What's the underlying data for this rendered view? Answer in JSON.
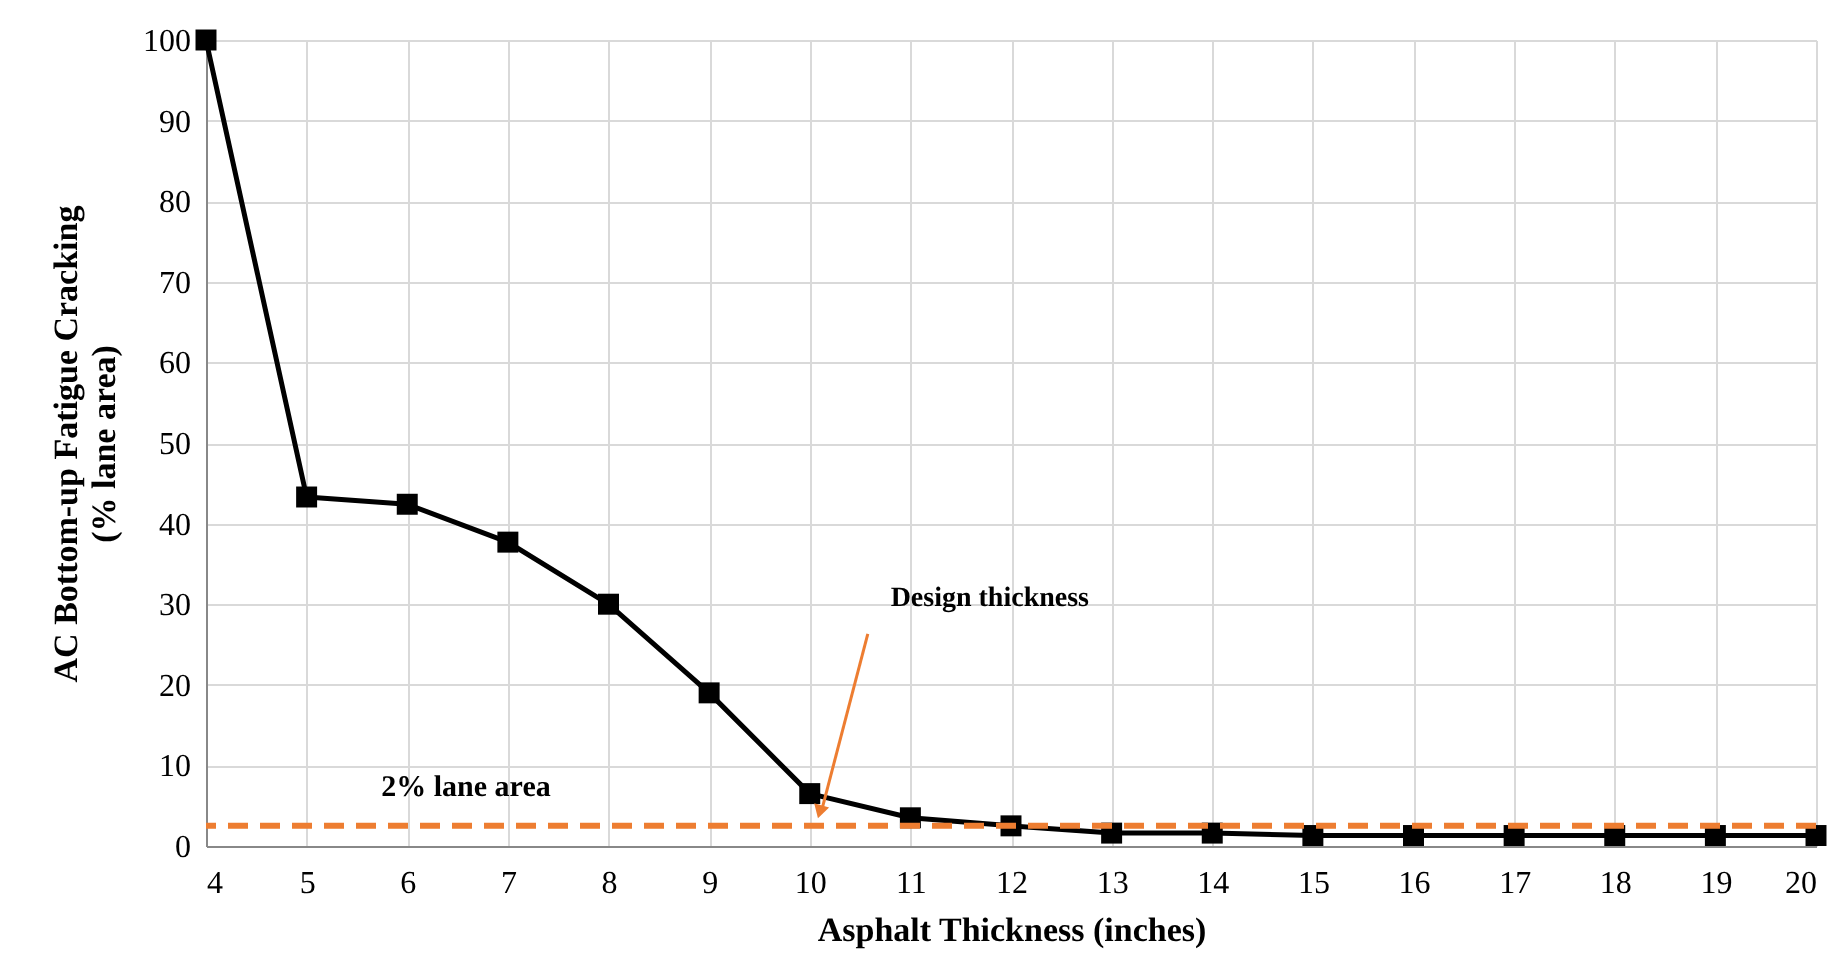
{
  "chart_data": {
    "type": "line",
    "xlabel": "Asphalt Thickness (inches)",
    "ylabel": "AC Bottom-up Fatigue Cracking\n(% lane area)",
    "x": [
      4,
      5,
      6,
      7,
      8,
      9,
      10,
      11,
      12,
      13,
      14,
      15,
      16,
      17,
      18,
      19,
      20
    ],
    "series": [
      {
        "color": "#000000",
        "values": [
          100,
          43.3,
          42.4,
          37.7,
          30,
          19,
          6.5,
          3.5,
          2.5,
          1.6,
          1.6,
          1.3,
          1.3,
          1.3,
          1.3,
          1.3,
          1.3
        ]
      }
    ],
    "xlim": [
      4,
      20
    ],
    "xticks": [
      4,
      5,
      6,
      7,
      8,
      9,
      10,
      11,
      12,
      13,
      14,
      15,
      16,
      17,
      18,
      19,
      20
    ],
    "ylim": [
      0,
      100
    ],
    "yticks": [
      0,
      10,
      20,
      30,
      40,
      50,
      60,
      70,
      80,
      90,
      100
    ],
    "ref_lines": [
      {
        "axis": "y",
        "value": 2.5,
        "label": "2% lane area",
        "color": "#ed7d31",
        "line_style": "dashed"
      }
    ],
    "annotations": [
      {
        "text": "Design thickness",
        "x": 10.1,
        "y": 3.5
      }
    ],
    "grid": true,
    "marker": "square",
    "line_style": "solid"
  }
}
